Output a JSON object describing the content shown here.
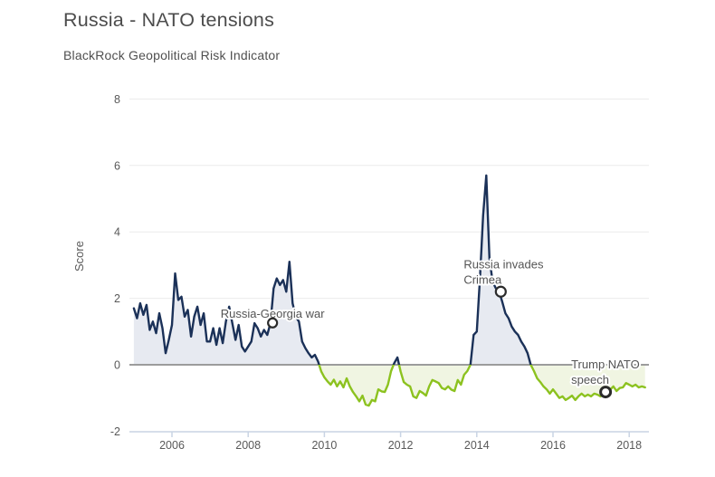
{
  "header": {
    "title": "Russia - NATO tensions",
    "subtitle": "BlackRock Geopolitical Risk Indicator"
  },
  "chart_data": {
    "type": "area",
    "title": "Russia - NATO tensions",
    "subtitle": "BlackRock Geopolitical Risk Indicator",
    "xlabel": "",
    "ylabel": "Score",
    "ylim": [
      -2,
      8
    ],
    "xlim": [
      2004.9,
      2018.5
    ],
    "yticks": [
      8,
      6,
      4,
      2,
      0,
      -2
    ],
    "xticks": [
      2006,
      2008,
      2010,
      2012,
      2014,
      2016,
      2018
    ],
    "grid": true,
    "legend": "none",
    "series": [
      {
        "name": "Score",
        "frequency": "monthly",
        "start_year": 2005,
        "values": [
          1.7,
          1.4,
          1.85,
          1.5,
          1.8,
          1.05,
          1.3,
          0.95,
          1.55,
          1.1,
          0.35,
          0.75,
          1.2,
          2.75,
          1.95,
          2.05,
          1.45,
          1.65,
          0.85,
          1.45,
          1.75,
          1.2,
          1.55,
          0.7,
          0.7,
          1.1,
          0.6,
          1.1,
          0.65,
          1.3,
          1.75,
          1.25,
          0.75,
          1.2,
          0.55,
          0.4,
          0.55,
          0.7,
          1.25,
          1.1,
          0.85,
          1.05,
          0.9,
          1.25,
          2.3,
          2.6,
          2.4,
          2.55,
          2.2,
          3.1,
          1.85,
          1.45,
          1.3,
          0.7,
          0.5,
          0.35,
          0.22,
          0.3,
          0.1,
          -0.2,
          -0.38,
          -0.5,
          -0.6,
          -0.45,
          -0.65,
          -0.5,
          -0.68,
          -0.41,
          -0.65,
          -0.82,
          -0.95,
          -1.1,
          -0.93,
          -1.2,
          -1.23,
          -1.06,
          -1.1,
          -0.74,
          -0.8,
          -0.82,
          -0.6,
          -0.19,
          0.05,
          0.22,
          -0.2,
          -0.52,
          -0.6,
          -0.65,
          -0.95,
          -1.0,
          -0.79,
          -0.85,
          -0.93,
          -0.65,
          -0.46,
          -0.5,
          -0.55,
          -0.7,
          -0.74,
          -0.65,
          -0.75,
          -0.79,
          -0.46,
          -0.6,
          -0.3,
          -0.19,
          0.0,
          0.9,
          1.0,
          2.6,
          4.5,
          5.7,
          3.2,
          2.5,
          2.3,
          2.2,
          1.9,
          1.55,
          1.4,
          1.15,
          1.0,
          0.9,
          0.7,
          0.55,
          0.35,
          0.0,
          -0.19,
          -0.41,
          -0.52,
          -0.65,
          -0.74,
          -0.87,
          -0.74,
          -0.87,
          -1.0,
          -0.95,
          -1.06,
          -1.0,
          -0.93,
          -1.06,
          -0.95,
          -0.87,
          -0.95,
          -0.9,
          -0.95,
          -0.87,
          -0.9,
          -0.95,
          -0.85,
          -0.82,
          -0.75,
          -0.65,
          -0.79,
          -0.7,
          -0.68,
          -0.55,
          -0.6,
          -0.65,
          -0.6,
          -0.68,
          -0.65,
          -0.68
        ]
      }
    ],
    "annotations": [
      {
        "label": "Russia-Georgia war",
        "lines": [
          "Russia-Georgia war"
        ],
        "x": 2008.64,
        "y": 1.26
      },
      {
        "label": "Russia invades Crimea",
        "lines": [
          "Russia invades",
          "Crimea"
        ],
        "x": 2014.63,
        "y": 2.2
      },
      {
        "label": "Trump NATO speech",
        "lines": [
          "Trump NATO",
          "speech"
        ],
        "x": 2017.38,
        "y": -0.82
      }
    ],
    "colors": {
      "line_above": "#1b3158",
      "line_below": "#8cc21f",
      "fill_above": "#e7eaf1",
      "fill_below": "#f0f5e2",
      "zero_line": "#9c9c9c",
      "grid_line": "#ececec",
      "axis_line": "#c9d4e4",
      "text": "#595959",
      "annotation_text": "#545454",
      "marker_fill": "#ffffff",
      "marker_stroke": "#2b2b2b"
    }
  }
}
